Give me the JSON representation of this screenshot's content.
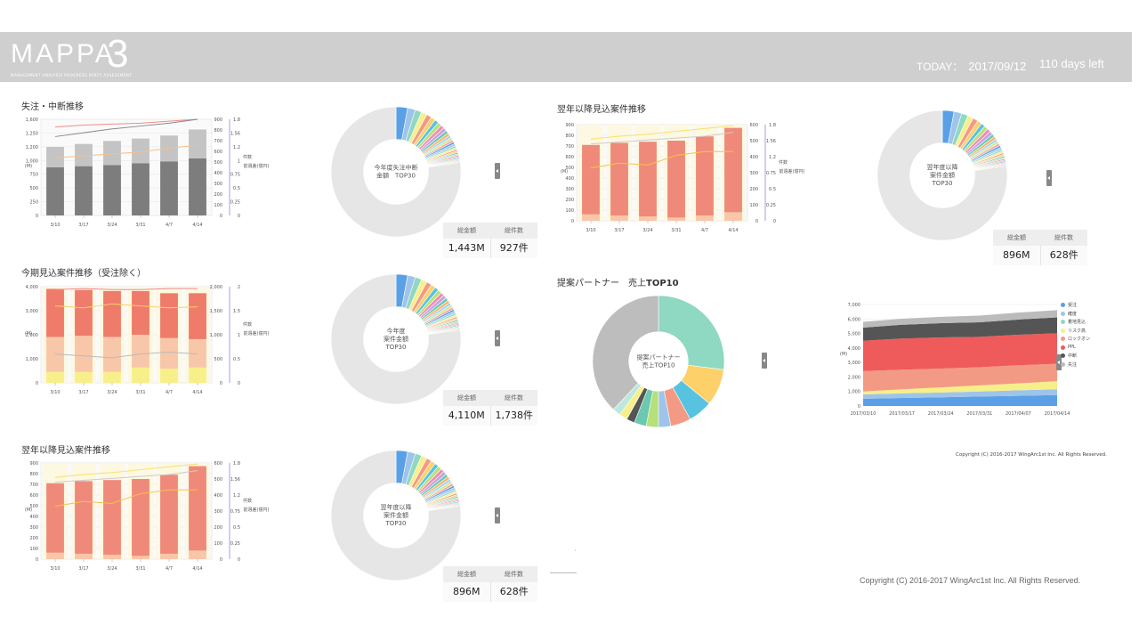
{
  "header": {
    "logo_text": "MAPPA",
    "logo_num": "3",
    "logo_sub": "MANAGEMENT ANALYSIS PROGRESS PARTY ASSESSMENT",
    "today_label": "TODAY：",
    "today_date": "2017/09/12",
    "days_left": "110 days left"
  },
  "colors": {
    "header_bg": "#cfcfcf",
    "accent_red": "#ef6b6b",
    "salmon": "#f39a84",
    "peach": "#f8c6a8",
    "yellow": "#f7ef8a",
    "gray_dark": "#7d7d7d",
    "gray_light": "#c4c4c4"
  },
  "panels": {
    "lost": {
      "title": "失注・中断推移",
      "y_unit": "(M)",
      "y2_unit": "件数",
      "y3_unit": "前週差(億円)",
      "x": [
        "3/10",
        "3/17",
        "3/24",
        "3/31",
        "4/7",
        "4/14"
      ],
      "y_ticks": [
        "1,600",
        "1,250",
        "1,200",
        "1,000",
        "750",
        "500",
        "250",
        "0"
      ],
      "y2_ticks": [
        "900",
        "800",
        "700",
        "600",
        "500",
        "400",
        "300",
        "200",
        "100",
        "0"
      ],
      "y3_ticks": [
        "1.8",
        "1.56",
        "1.2",
        "1",
        "0.75",
        "0.5",
        "0.25",
        "0"
      ],
      "donut_label": [
        "今年度失注中断",
        "金額　TOP30"
      ],
      "kpi_amount_label": "総金額",
      "kpi_count_label": "総件数",
      "kpi_amount": "1,443M",
      "kpi_count": "927件"
    },
    "current": {
      "title": "今期見込案件推移（受注除く）",
      "y_unit": "(M)",
      "y2_unit": "件数",
      "y3_unit": "前週差(億円)",
      "x": [
        "3/10",
        "3/17",
        "3/24",
        "3/31",
        "4/7",
        "4/14"
      ],
      "y_ticks": [
        "4,000",
        "3,000",
        "2,000",
        "1,000",
        "0"
      ],
      "y2_ticks": [
        "2,000",
        "1,500",
        "1,000",
        "500",
        "0"
      ],
      "y3_ticks": [
        "2",
        "1.5",
        "1",
        "0.5",
        "0"
      ],
      "donut_label": [
        "今年度",
        "案件金額",
        "TOP30"
      ],
      "kpi_amount_label": "総金額",
      "kpi_count_label": "総件数",
      "kpi_amount": "4,110M",
      "kpi_count": "1,738件"
    },
    "next_left": {
      "title": "翌年以降見込案件推移",
      "y_unit": "(M)",
      "y2_unit": "件数",
      "y3_unit": "前週差(億円)",
      "x": [
        "3/10",
        "3/17",
        "3/24",
        "3/31",
        "4/7",
        "4/14"
      ],
      "y_ticks": [
        "900",
        "800",
        "700",
        "600",
        "500",
        "400",
        "300",
        "200",
        "100",
        "0"
      ],
      "y2_ticks": [
        "600",
        "500",
        "400",
        "300",
        "200",
        "100",
        "0"
      ],
      "y3_ticks": [
        "1.8",
        "1.56",
        "1.2",
        "0.75",
        "0.5",
        "0.25",
        "0"
      ],
      "donut_label": [
        "翌年度以降",
        "案件金額",
        "TOP30"
      ],
      "kpi_amount_label": "総金額",
      "kpi_count_label": "総件数",
      "kpi_amount": "896M",
      "kpi_count": "628件"
    },
    "next_right": {
      "title": "翌年以降見込案件推移",
      "y_unit": "(M)",
      "y2_unit": "件数",
      "y3_unit": "前週差(億円)",
      "x": [
        "3/10",
        "3/17",
        "3/24",
        "3/31",
        "4/7",
        "4/14"
      ],
      "y_ticks": [
        "900",
        "800",
        "700",
        "600",
        "500",
        "400",
        "300",
        "200",
        "100",
        "0"
      ],
      "y2_ticks": [
        "600",
        "500",
        "400",
        "300",
        "200",
        "100",
        "0"
      ],
      "y3_ticks": [
        "1.8",
        "1.56",
        "1.2",
        "0.75",
        "0.5",
        "0.25",
        "0"
      ],
      "donut_label": [
        "翌年度以降",
        "案件金額",
        "TOP30"
      ],
      "kpi_amount_label": "総金額",
      "kpi_count_label": "総件数",
      "kpi_amount": "896M",
      "kpi_count": "628件"
    },
    "partner": {
      "title_prefix": "提案パートナー　売上",
      "title_bold": "TOP10",
      "donut_label": [
        "提案パートナー",
        "売上TOP10"
      ]
    },
    "area": {
      "y_unit": "(M)",
      "y_ticks": [
        "7,000",
        "6,000",
        "5,000",
        "4,000",
        "3,000",
        "2,000",
        "1,000",
        "0"
      ],
      "x": [
        "2017/03/10",
        "2017/03/17",
        "2017/03/24",
        "2017/03/31",
        "2017/04/07",
        "2017/04/14"
      ],
      "legend": [
        {
          "name": "受注",
          "color": "#5aa0e6"
        },
        {
          "name": "確度",
          "color": "#9ec4ea"
        },
        {
          "name": "着地見込",
          "color": "#8fd8c2"
        },
        {
          "name": "リスク高",
          "color": "#f7ef8a"
        },
        {
          "name": "ロックオン",
          "color": "#f39a84"
        },
        {
          "name": "PPL",
          "color": "#ef5b5b"
        },
        {
          "name": "中断",
          "color": "#555555"
        },
        {
          "name": "失注",
          "color": "#bbbbbb"
        }
      ]
    }
  },
  "chart_data": [
    {
      "type": "bar",
      "title": "失注・中断推移",
      "categories": [
        "3/10",
        "3/17",
        "3/24",
        "3/31",
        "4/7",
        "4/14"
      ],
      "series": [
        {
          "name": "",
          "values": [
            800,
            820,
            840,
            870,
            900,
            950
          ]
        },
        {
          "name": "",
          "values": [
            340,
            370,
            400,
            410,
            430,
            480
          ]
        }
      ],
      "ylim": [
        0,
        1600
      ]
    },
    {
      "type": "bar",
      "title": "今期見込案件推移（受注除く）",
      "categories": [
        "3/10",
        "3/17",
        "3/24",
        "3/31",
        "4/7",
        "4/14"
      ],
      "series": [
        {
          "name": "",
          "values": [
            500,
            500,
            500,
            700,
            650,
            700
          ]
        },
        {
          "name": "",
          "values": [
            1600,
            1650,
            1600,
            1500,
            1400,
            1300
          ]
        },
        {
          "name": "",
          "values": [
            2200,
            2100,
            2100,
            2000,
            2050,
            2100
          ]
        }
      ],
      "ylim": [
        0,
        4400
      ]
    },
    {
      "type": "bar",
      "title": "翌年以降見込案件推移",
      "categories": [
        "3/10",
        "3/17",
        "3/24",
        "3/31",
        "4/7",
        "4/14"
      ],
      "series": [
        {
          "name": "",
          "values": [
            60,
            50,
            40,
            30,
            50,
            80
          ]
        },
        {
          "name": "",
          "values": [
            650,
            680,
            700,
            720,
            740,
            790
          ]
        }
      ],
      "ylim": [
        0,
        900
      ]
    },
    {
      "type": "pie",
      "title": "提案パートナー　売上TOP10",
      "values": [
        27,
        9,
        6,
        5,
        3,
        3,
        3,
        2,
        2,
        2,
        38
      ],
      "colors": [
        "#8fd8c2",
        "#fdd06a",
        "#58c3e0",
        "#f39a84",
        "#9ec4ea",
        "#b5e07a",
        "#6cc8b0",
        "#555555",
        "#f7ef8a",
        "#bfe8dc",
        "#bdbdbd"
      ]
    }
  ]
}
